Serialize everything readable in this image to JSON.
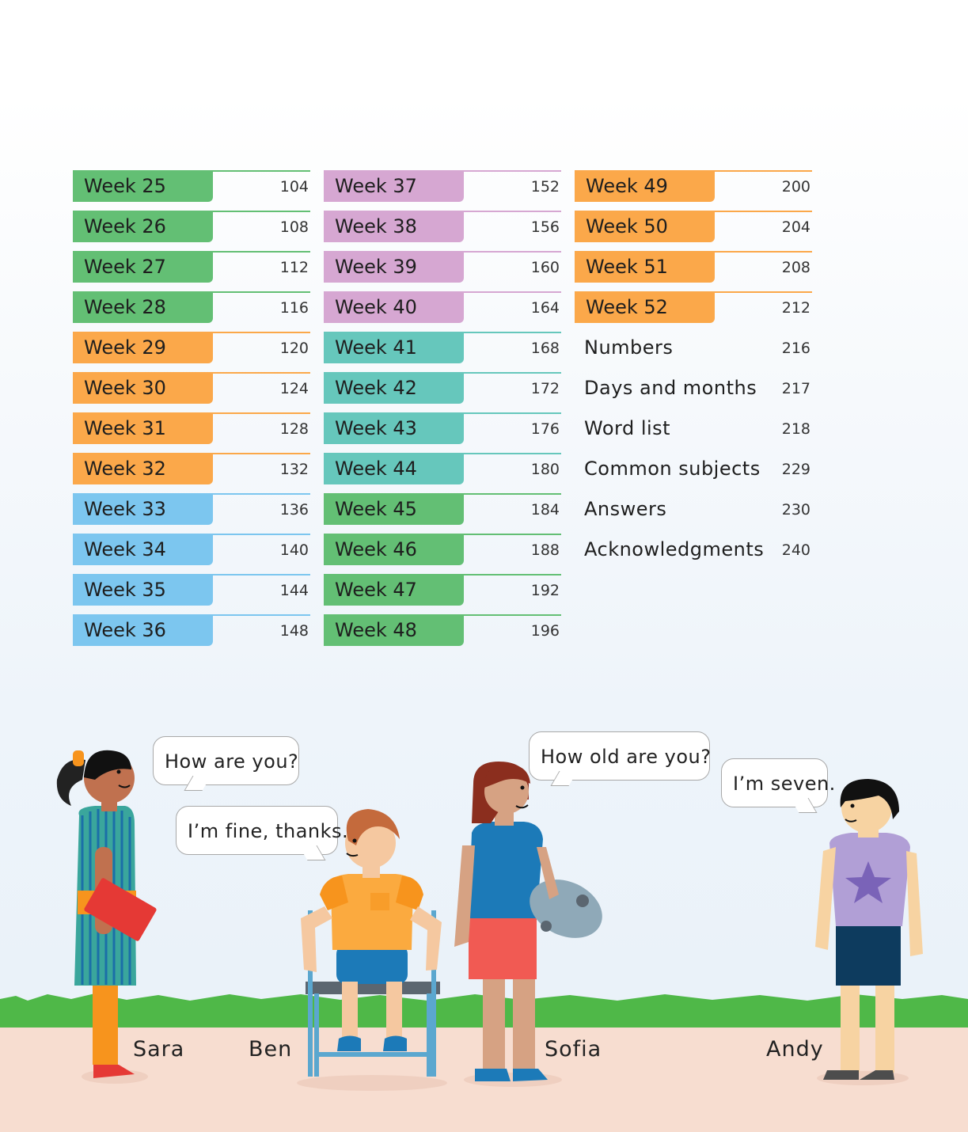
{
  "contents": {
    "column1": [
      {
        "label": "Week 25",
        "page": "104",
        "color": "green"
      },
      {
        "label": "Week 26",
        "page": "108",
        "color": "green"
      },
      {
        "label": "Week 27",
        "page": "112",
        "color": "green"
      },
      {
        "label": "Week 28",
        "page": "116",
        "color": "green"
      },
      {
        "label": "Week 29",
        "page": "120",
        "color": "orange"
      },
      {
        "label": "Week 30",
        "page": "124",
        "color": "orange"
      },
      {
        "label": "Week 31",
        "page": "128",
        "color": "orange"
      },
      {
        "label": "Week 32",
        "page": "132",
        "color": "orange"
      },
      {
        "label": "Week 33",
        "page": "136",
        "color": "blue"
      },
      {
        "label": "Week 34",
        "page": "140",
        "color": "blue"
      },
      {
        "label": "Week 35",
        "page": "144",
        "color": "blue"
      },
      {
        "label": "Week 36",
        "page": "148",
        "color": "blue"
      }
    ],
    "column2": [
      {
        "label": "Week 37",
        "page": "152",
        "color": "purple"
      },
      {
        "label": "Week 38",
        "page": "156",
        "color": "purple"
      },
      {
        "label": "Week 39",
        "page": "160",
        "color": "purple"
      },
      {
        "label": "Week 40",
        "page": "164",
        "color": "purple"
      },
      {
        "label": "Week 41",
        "page": "168",
        "color": "teal"
      },
      {
        "label": "Week 42",
        "page": "172",
        "color": "teal"
      },
      {
        "label": "Week 43",
        "page": "176",
        "color": "teal"
      },
      {
        "label": "Week 44",
        "page": "180",
        "color": "teal"
      },
      {
        "label": "Week 45",
        "page": "184",
        "color": "green"
      },
      {
        "label": "Week 46",
        "page": "188",
        "color": "green"
      },
      {
        "label": "Week 47",
        "page": "192",
        "color": "green"
      },
      {
        "label": "Week 48",
        "page": "196",
        "color": "green"
      }
    ],
    "column3": [
      {
        "label": "Week 49",
        "page": "200",
        "color": "orange"
      },
      {
        "label": "Week 50",
        "page": "204",
        "color": "orange"
      },
      {
        "label": "Week 51",
        "page": "208",
        "color": "orange"
      },
      {
        "label": "Week 52",
        "page": "212",
        "color": "orange"
      },
      {
        "label": "Numbers",
        "page": "216",
        "color": "none"
      },
      {
        "label": "Days and months",
        "page": "217",
        "color": "none"
      },
      {
        "label": "Word list",
        "page": "218",
        "color": "none"
      },
      {
        "label": "Common subjects",
        "page": "229",
        "color": "none"
      },
      {
        "label": "Answers",
        "page": "230",
        "color": "none"
      },
      {
        "label": "Acknowledgments",
        "page": "240",
        "color": "none"
      }
    ]
  },
  "speech": {
    "how_are_you": "How are you?",
    "fine_thanks": "I’m fine, thanks.",
    "how_old": "How old are you?",
    "seven": "I’m seven."
  },
  "characters": {
    "sara": "Sara",
    "ben": "Ben",
    "sofia": "Sofia",
    "andy": "Andy"
  },
  "colors": {
    "green": "#63bf74",
    "orange": "#fba84a",
    "blue": "#7cc6ef",
    "purple": "#d6a7d2",
    "teal": "#66c7bc",
    "grass": "#4fb848",
    "path": "#f7ddd0"
  }
}
